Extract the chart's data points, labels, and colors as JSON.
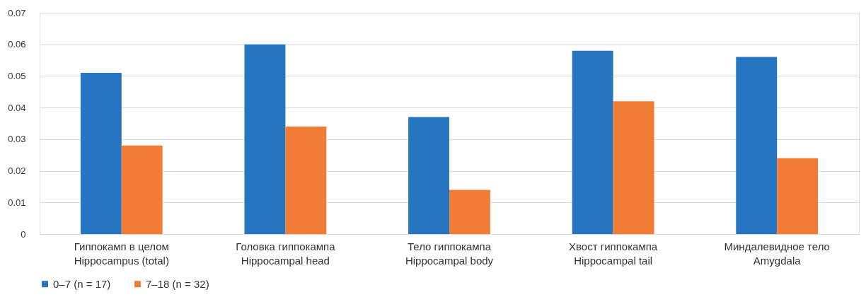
{
  "chart_data": {
    "type": "bar",
    "categories": [
      "Гиппокамп в целом\nHippocampus (total)",
      "Головка гиппокампа\nHippocampal head",
      "Тело гиппокампа\nHippocampal body",
      "Хвост гиппокампа\nHippocampal tail",
      "Миндалевидное тело\nAmygdala"
    ],
    "series": [
      {
        "name": "0–7 (n = 17)",
        "color": "#2675c0",
        "values": [
          0.051,
          0.06,
          0.037,
          0.058,
          0.056
        ]
      },
      {
        "name": "7–18 (n = 32)",
        "color": "#f07c35",
        "values": [
          0.028,
          0.034,
          0.014,
          0.042,
          0.024
        ]
      }
    ],
    "ylim": [
      0,
      0.07
    ],
    "yticks": [
      0,
      0.01,
      0.02,
      0.03,
      0.04,
      0.05,
      0.06,
      0.07
    ],
    "grid": "y",
    "legend": "bottom"
  }
}
